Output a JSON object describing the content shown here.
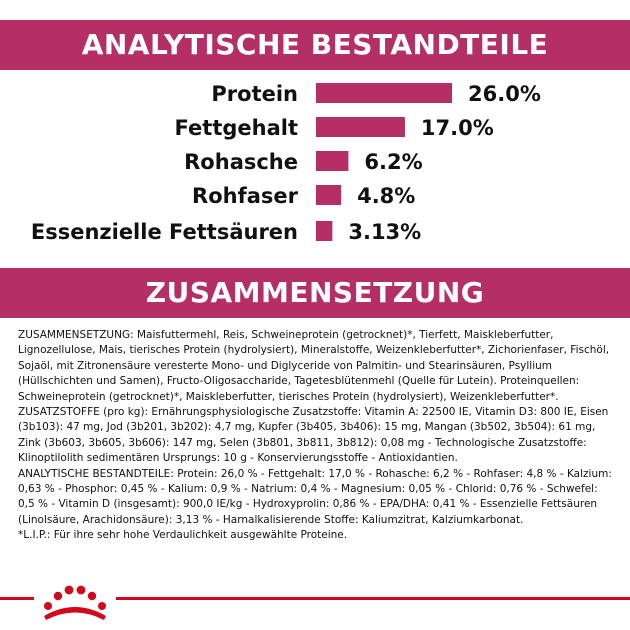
{
  "top_banner": "ANALYTISCHE BESTANDTEILE",
  "mid_banner": "ZUSAMMENSETZUNG",
  "colors": {
    "brand": "#b32f66",
    "bar": "#b32f66",
    "accent_red": "#d2091d",
    "text": "#111111"
  },
  "chart_data": {
    "type": "bar",
    "orientation": "horizontal",
    "categories": [
      "Protein",
      "Fettgehalt",
      "Rohasche",
      "Rohfaser",
      "Essenzielle Fettsäuren"
    ],
    "values": [
      26.0,
      17.0,
      6.2,
      4.8,
      3.13
    ],
    "value_labels": [
      "26.0%",
      "17.0%",
      "6.2%",
      "4.8%",
      "3.13%"
    ],
    "unit": "%",
    "title": "",
    "xlabel": "",
    "ylabel": "",
    "xlim": [
      0,
      26.0
    ],
    "grid": false,
    "legend": "none"
  },
  "composition_text": "ZUSAMMENSETZUNG: Maisfuttermehl, Reis, Schweineprotein (getrocknet)*, Tierfett, Maiskleberfutter, Lignozellulose, Mais, tierisches Protein (hydrolysiert), Mineralstoffe, Weizenkleberfutter*, Zichorienfaser, Fischöl, Sojaöl, mit Zitronensäure veresterte Mono- und Diglyceride von Palmitin- und Stearinsäuren, Psyllium (Hüllschichten und Samen), Fructo-Oligosaccharide, Tagetesblütenmehl (Quelle für Lutein). Proteinquellen: Schweineprotein (getrocknet)*, Maiskleberfutter, tierisches Protein (hydrolysiert), Weizenkleberfutter*.\nZUSATZSTOFFE (pro kg): Ernährungsphysiologische Zusatzstoffe: Vitamin A: 22500 IE, Vitamin D3: 800 IE, Eisen (3b103): 47 mg, Jod (3b201, 3b202): 4,7 mg, Kupfer (3b405, 3b406): 15 mg, Mangan (3b502, 3b504): 61 mg, Zink (3b603, 3b605, 3b606): 147 mg, Selen (3b801, 3b811, 3b812): 0,08 mg - Technologische Zusatzstoffe: Klinoptilolith sedimentären Ursprungs: 10 g - Konservierungsstoffe - Antioxidantien.\nANALYTISCHE BESTANDTEILE: Protein: 26,0 % - Fettgehalt: 17,0 % - Rohasche: 6,2 % - Rohfaser: 4,8 % - Kalzium: 0,63 % - Phosphor: 0,45 % - Kalium: 0,9 % - Natrium: 0,4 % - Magnesium: 0,05 % - Chlorid: 0,76 % - Schwefel: 0,5 % - Vitamin D (insgesamt): 900,0 IE/kg - Hydroxyprolin: 0,86 % - EPA/DHA: 0,41 % - Essenzielle Fettsäuren (Linolsäure, Arachidonsäure): 3,13 % - Harnalkalisierende Stoffe: Kaliumzitrat, Kalziumkarbonat.\n*L.I.P.: Für ihre sehr hohe Verdaulichkeit ausgewählte Proteine."
}
